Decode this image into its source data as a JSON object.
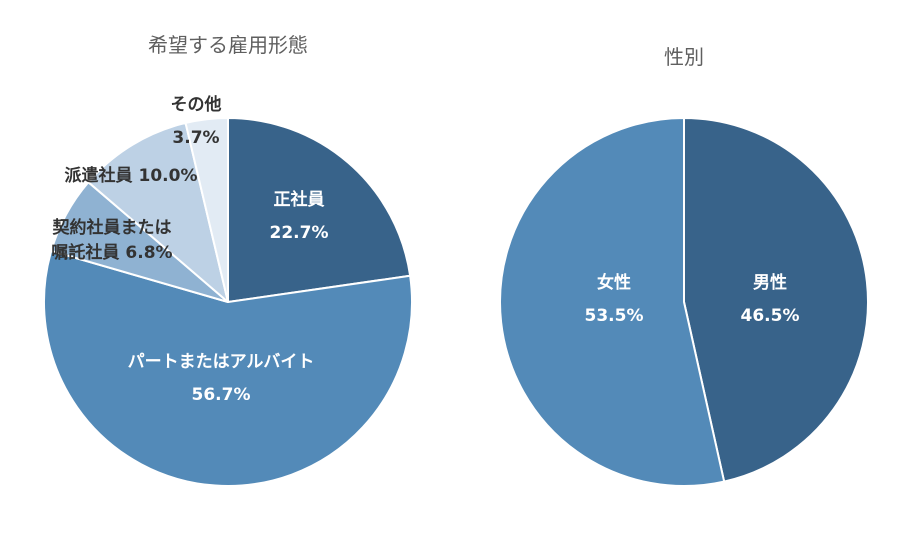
{
  "chart_data": [
    {
      "type": "pie",
      "title": "希望する雇用形態",
      "slices": [
        {
          "label": "正社員",
          "value": 22.7,
          "value_label": "22.7%",
          "color": "#38638a",
          "label_style": "inside"
        },
        {
          "label": "パートまたはアルバイト",
          "value": 56.7,
          "value_label": "56.7%",
          "color": "#538ab8",
          "label_style": "inside"
        },
        {
          "label": "契約社員または嘱託社員",
          "value": 6.8,
          "value_label": "6.8%",
          "color": "#8fb2d2",
          "label_style": "outside"
        },
        {
          "label": "派遣社員",
          "value": 10.0,
          "value_label": "10.0%",
          "color": "#bdd1e5",
          "label_style": "outside"
        },
        {
          "label": "その他",
          "value": 3.7,
          "value_label": "3.7%",
          "color": "#e2ebf4",
          "label_style": "outside"
        }
      ]
    },
    {
      "type": "pie",
      "title": "性別",
      "slices": [
        {
          "label": "男性",
          "value": 46.5,
          "value_label": "46.5%",
          "color": "#38638a",
          "label_style": "inside"
        },
        {
          "label": "女性",
          "value": 53.5,
          "value_label": "53.5%",
          "color": "#538ab8",
          "label_style": "inside"
        }
      ]
    }
  ]
}
